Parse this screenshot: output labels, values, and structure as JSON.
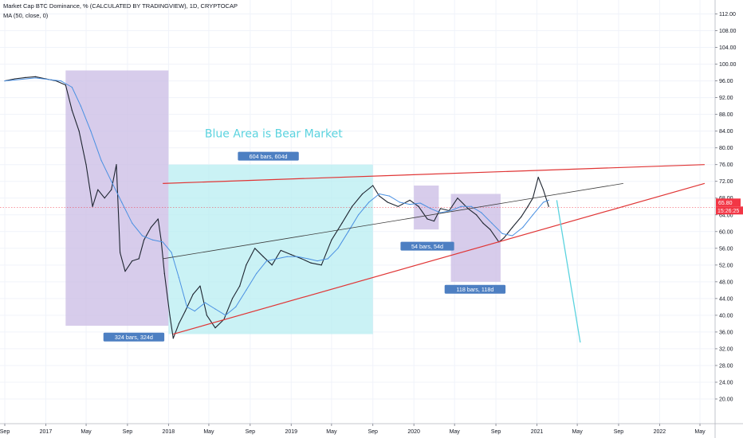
{
  "header": {
    "title": "Market Cap BTC Dominance, % (CALCULATED BY TRADINGVIEW), 1D, CRYPTOCAP",
    "indicator": "MA (50, close, 0)"
  },
  "colors": {
    "price": "#1e2530",
    "ma": "#4a90e2",
    "wedge": "#e03535",
    "midline": "#3c3c3c",
    "bear_zone": "#cdbfe6",
    "bull_zone": "#b8eef2",
    "annotation": "#5bd3df",
    "label_bg": "#4d7fc2",
    "price_badge": "#f23645",
    "grid": "#f0f3fa"
  },
  "chart_data": {
    "type": "line",
    "title": "Market Cap BTC Dominance, % (CALCULATED BY TRADINGVIEW), 1D, CRYPTOCAP",
    "xlabel": "",
    "ylabel": "",
    "x_range": [
      "2016-09-01",
      "2022-05-01"
    ],
    "ylim": [
      19,
      113
    ],
    "x_ticks": [
      {
        "date": "2016-09-01",
        "label": "Sep"
      },
      {
        "date": "2017-01-01",
        "label": "2017"
      },
      {
        "date": "2017-05-01",
        "label": "May"
      },
      {
        "date": "2017-09-01",
        "label": "Sep"
      },
      {
        "date": "2018-01-01",
        "label": "2018"
      },
      {
        "date": "2018-05-01",
        "label": "May"
      },
      {
        "date": "2018-09-01",
        "label": "Sep"
      },
      {
        "date": "2019-01-01",
        "label": "2019"
      },
      {
        "date": "2019-05-01",
        "label": "May"
      },
      {
        "date": "2019-09-01",
        "label": "Sep"
      },
      {
        "date": "2020-01-01",
        "label": "2020"
      },
      {
        "date": "2020-05-01",
        "label": "May"
      },
      {
        "date": "2020-09-01",
        "label": "Sep"
      },
      {
        "date": "2021-01-01",
        "label": "2021"
      },
      {
        "date": "2021-05-01",
        "label": "May"
      },
      {
        "date": "2021-09-01",
        "label": "Sep"
      },
      {
        "date": "2022-01-01",
        "label": "2022"
      },
      {
        "date": "2022-05-01",
        "label": "May"
      }
    ],
    "y_ticks": [
      "112.00",
      "108.00",
      "104.00",
      "100.00",
      "96.00",
      "92.00",
      "88.00",
      "84.00",
      "80.00",
      "76.00",
      "72.00",
      "68.00",
      "64.00",
      "60.00",
      "56.00",
      "52.00",
      "48.00",
      "44.00",
      "40.00",
      "36.00",
      "32.00",
      "28.00",
      "24.00",
      "20.00"
    ],
    "series": [
      {
        "key": "price",
        "points": [
          [
            "2016-09-01",
            96.0
          ],
          [
            "2016-10-01",
            96.5
          ],
          [
            "2016-11-01",
            96.8
          ],
          [
            "2016-12-01",
            97.0
          ],
          [
            "2017-01-01",
            96.5
          ],
          [
            "2017-02-01",
            96.0
          ],
          [
            "2017-03-01",
            95.0
          ],
          [
            "2017-03-20",
            89.0
          ],
          [
            "2017-04-10",
            84.0
          ],
          [
            "2017-05-01",
            76.0
          ],
          [
            "2017-05-20",
            66.0
          ],
          [
            "2017-06-05",
            70.0
          ],
          [
            "2017-06-25",
            68.0
          ],
          [
            "2017-07-15",
            70.0
          ],
          [
            "2017-07-30",
            76.0
          ],
          [
            "2017-08-10",
            55.0
          ],
          [
            "2017-08-25",
            50.5
          ],
          [
            "2017-09-15",
            53.0
          ],
          [
            "2017-10-05",
            53.5
          ],
          [
            "2017-10-20",
            58.0
          ],
          [
            "2017-11-10",
            61.0
          ],
          [
            "2017-12-01",
            63.0
          ],
          [
            "2017-12-10",
            58.0
          ],
          [
            "2017-12-20",
            50.0
          ],
          [
            "2018-01-05",
            40.0
          ],
          [
            "2018-01-15",
            34.5
          ],
          [
            "2018-02-01",
            38.0
          ],
          [
            "2018-02-20",
            41.0
          ],
          [
            "2018-03-15",
            45.0
          ],
          [
            "2018-04-05",
            47.0
          ],
          [
            "2018-04-25",
            40.0
          ],
          [
            "2018-05-20",
            37.0
          ],
          [
            "2018-06-15",
            39.0
          ],
          [
            "2018-07-10",
            44.0
          ],
          [
            "2018-08-01",
            47.0
          ],
          [
            "2018-08-20",
            52.0
          ],
          [
            "2018-09-15",
            56.0
          ],
          [
            "2018-10-10",
            54.0
          ],
          [
            "2018-11-05",
            52.0
          ],
          [
            "2018-12-01",
            55.5
          ],
          [
            "2019-01-01",
            54.5
          ],
          [
            "2019-02-01",
            53.5
          ],
          [
            "2019-03-01",
            52.5
          ],
          [
            "2019-04-01",
            52.0
          ],
          [
            "2019-05-01",
            58.0
          ],
          [
            "2019-06-01",
            62.0
          ],
          [
            "2019-07-01",
            66.0
          ],
          [
            "2019-08-01",
            69.0
          ],
          [
            "2019-09-01",
            71.0
          ],
          [
            "2019-09-20",
            68.5
          ],
          [
            "2019-10-15",
            67.0
          ],
          [
            "2019-11-15",
            66.0
          ],
          [
            "2019-12-20",
            67.5
          ],
          [
            "2020-01-15",
            66.0
          ],
          [
            "2020-02-10",
            63.0
          ],
          [
            "2020-03-01",
            62.5
          ],
          [
            "2020-03-20",
            65.5
          ],
          [
            "2020-04-15",
            65.0
          ],
          [
            "2020-05-10",
            68.0
          ],
          [
            "2020-06-10",
            65.5
          ],
          [
            "2020-07-05",
            64.0
          ],
          [
            "2020-07-25",
            62.0
          ],
          [
            "2020-08-15",
            60.5
          ],
          [
            "2020-09-10",
            57.5
          ],
          [
            "2020-09-25",
            58.5
          ],
          [
            "2020-10-20",
            61.0
          ],
          [
            "2020-11-15",
            63.5
          ],
          [
            "2020-12-05",
            66.0
          ],
          [
            "2020-12-20",
            68.0
          ],
          [
            "2021-01-05",
            73.0
          ],
          [
            "2021-01-20",
            70.0
          ],
          [
            "2021-02-05",
            66.0
          ]
        ]
      },
      {
        "key": "ma",
        "points": [
          [
            "2016-09-01",
            96.0
          ],
          [
            "2016-12-01",
            96.7
          ],
          [
            "2017-02-15",
            96.0
          ],
          [
            "2017-03-20",
            94.5
          ],
          [
            "2017-04-15",
            90.0
          ],
          [
            "2017-05-15",
            84.0
          ],
          [
            "2017-06-15",
            77.0
          ],
          [
            "2017-07-15",
            72.0
          ],
          [
            "2017-08-15",
            67.0
          ],
          [
            "2017-09-15",
            62.0
          ],
          [
            "2017-10-15",
            59.0
          ],
          [
            "2017-11-15",
            58.0
          ],
          [
            "2017-12-15",
            57.5
          ],
          [
            "2018-01-10",
            55.0
          ],
          [
            "2018-02-01",
            49.0
          ],
          [
            "2018-02-25",
            42.0
          ],
          [
            "2018-03-20",
            41.0
          ],
          [
            "2018-04-20",
            43.0
          ],
          [
            "2018-05-20",
            41.5
          ],
          [
            "2018-06-20",
            40.0
          ],
          [
            "2018-07-20",
            42.0
          ],
          [
            "2018-08-20",
            46.0
          ],
          [
            "2018-09-20",
            50.0
          ],
          [
            "2018-10-20",
            53.0
          ],
          [
            "2018-11-20",
            53.5
          ],
          [
            "2018-12-20",
            54.0
          ],
          [
            "2019-01-20",
            54.0
          ],
          [
            "2019-02-20",
            53.5
          ],
          [
            "2019-03-20",
            53.0
          ],
          [
            "2019-04-20",
            53.5
          ],
          [
            "2019-05-20",
            56.0
          ],
          [
            "2019-06-20",
            60.0
          ],
          [
            "2019-07-20",
            64.0
          ],
          [
            "2019-08-20",
            67.0
          ],
          [
            "2019-09-20",
            69.0
          ],
          [
            "2019-10-20",
            68.5
          ],
          [
            "2019-11-20",
            67.0
          ],
          [
            "2019-12-20",
            66.5
          ],
          [
            "2020-01-20",
            66.8
          ],
          [
            "2020-02-20",
            65.5
          ],
          [
            "2020-03-20",
            64.5
          ],
          [
            "2020-04-20",
            65.0
          ],
          [
            "2020-05-20",
            66.0
          ],
          [
            "2020-06-20",
            66.0
          ],
          [
            "2020-07-20",
            64.5
          ],
          [
            "2020-08-20",
            62.0
          ],
          [
            "2020-09-20",
            59.5
          ],
          [
            "2020-10-20",
            59.0
          ],
          [
            "2020-11-20",
            61.0
          ],
          [
            "2020-12-20",
            64.0
          ],
          [
            "2021-01-20",
            67.0
          ],
          [
            "2021-02-05",
            67.5
          ]
        ]
      }
    ],
    "wedge_upper": {
      "from": [
        "2017-12-15",
        71.5
      ],
      "to": [
        "2022-05-15",
        76.0
      ]
    },
    "wedge_lower": {
      "from": [
        "2018-01-15",
        35.5
      ],
      "to": [
        "2022-05-15",
        71.5
      ]
    },
    "midline": {
      "from": [
        "2017-12-15",
        53.5
      ],
      "to": [
        "2021-09-15",
        71.5
      ]
    },
    "projection": {
      "from": [
        "2021-03-01",
        67.5
      ],
      "to": [
        "2021-05-10",
        33.5
      ]
    },
    "zones": [
      {
        "kind": "bear",
        "from": [
          "2017-03-01",
          98.5
        ],
        "to": [
          "2018-01-01",
          37.5
        ],
        "label": "324 bars, 324d",
        "label_at": [
          "2017-09-20",
          34.8
        ]
      },
      {
        "kind": "bull",
        "from": [
          "2018-01-01",
          76.0
        ],
        "to": [
          "2019-09-01",
          35.5
        ],
        "label": "604 bars, 604d",
        "label_at": [
          "2018-10-25",
          78.0
        ]
      },
      {
        "kind": "bear",
        "from": [
          "2020-01-01",
          71.0
        ],
        "to": [
          "2020-03-15",
          60.5
        ],
        "label": "54 bars, 54d",
        "label_at": [
          "2020-02-10",
          56.5
        ]
      },
      {
        "kind": "bear",
        "from": [
          "2020-04-20",
          69.0
        ],
        "to": [
          "2020-09-15",
          48.0
        ],
        "label": "118 bars, 118d",
        "label_at": [
          "2020-07-01",
          46.2
        ]
      }
    ],
    "annotation": {
      "text": "Blue Area is Bear Market",
      "at": [
        "2018-11-10",
        82.5
      ]
    },
    "current_price": {
      "value": "65.80",
      "countdown": "15:26:25",
      "y": 65.8
    }
  }
}
